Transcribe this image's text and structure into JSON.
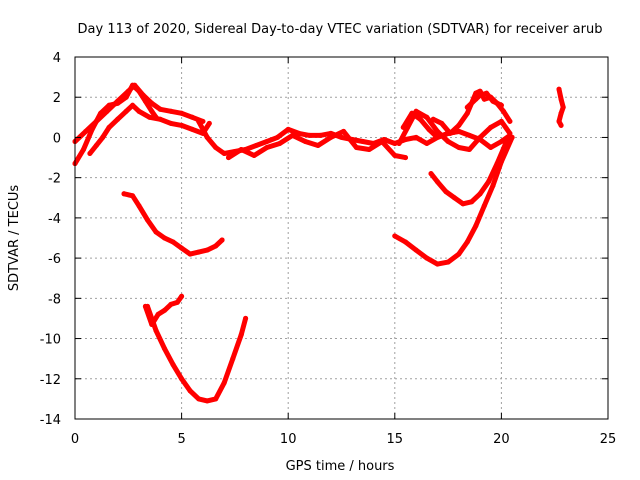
{
  "chart_data": {
    "type": "line",
    "title": "Day 113 of 2020, Sidereal Day-to-day VTEC variation (SDTVAR) for receiver arub",
    "xlabel": "GPS time / hours",
    "ylabel": "SDTVAR / TECUs",
    "xlim": [
      0,
      25
    ],
    "ylim": [
      -14,
      4
    ],
    "xticks": [
      "0",
      "5",
      "10",
      "15",
      "20",
      "25"
    ],
    "yticks": [
      "4",
      "2",
      "0",
      "-2",
      "-4",
      "-6",
      "-8",
      "-10",
      "-12",
      "-14"
    ],
    "grid": true,
    "legend": "none",
    "color": "#ff0000",
    "series": [
      {
        "x": [
          0,
          0.5,
          1.0,
          1.5,
          2.0,
          2.5,
          2.8,
          3.2,
          3.6,
          4.0,
          4.5,
          5.0,
          5.5,
          6.0
        ],
        "y": [
          -0.2,
          0.3,
          0.8,
          1.3,
          1.8,
          2.3,
          2.6,
          2.1,
          1.7,
          1.4,
          1.3,
          1.2,
          1.0,
          0.8
        ]
      },
      {
        "x": [
          0,
          0.4,
          0.8,
          1.2,
          1.6,
          2.0,
          2.4,
          2.7,
          3.0,
          3.3,
          3.6,
          3.8
        ],
        "y": [
          -1.3,
          -0.6,
          0.4,
          1.2,
          1.6,
          1.7,
          2.0,
          2.6,
          2.3,
          1.8,
          1.3,
          1.0
        ]
      },
      {
        "x": [
          0.7,
          1.0,
          1.3,
          1.6,
          2.0,
          2.4,
          2.7,
          3.0,
          3.5,
          4.0,
          4.5,
          5.0,
          5.5,
          6.0,
          6.3
        ],
        "y": [
          -0.8,
          -0.4,
          0.0,
          0.5,
          0.9,
          1.3,
          1.6,
          1.3,
          1.0,
          0.9,
          0.7,
          0.6,
          0.4,
          0.2,
          0.7
        ]
      },
      {
        "x": [
          5.8,
          6.2,
          6.6,
          7.0,
          7.5,
          8.0,
          8.5,
          9.0,
          9.5,
          10.0,
          10.5,
          11.0,
          11.5,
          12.0,
          12.5,
          13.0,
          13.5,
          14.0,
          14.5,
          15.0,
          15.5,
          16.0,
          16.5,
          17.0,
          17.5,
          18.0
        ],
        "y": [
          0.8,
          0.0,
          -0.5,
          -0.8,
          -0.7,
          -0.6,
          -0.4,
          -0.2,
          0.0,
          0.4,
          0.2,
          0.1,
          0.1,
          0.2,
          0.0,
          -0.1,
          -0.2,
          -0.3,
          -0.1,
          -0.3,
          -0.1,
          0.0,
          -0.3,
          0.0,
          0.2,
          0.3
        ]
      },
      {
        "x": [
          7.2,
          7.8,
          8.4,
          9.0,
          9.6,
          10.2,
          10.8,
          11.4,
          12.0,
          12.6,
          13.2,
          13.8,
          14.4,
          15.0,
          15.5
        ],
        "y": [
          -1.0,
          -0.6,
          -0.9,
          -0.5,
          -0.3,
          0.1,
          -0.2,
          -0.4,
          0.0,
          0.3,
          -0.5,
          -0.6,
          -0.2,
          -0.9,
          -1.0
        ]
      },
      {
        "x": [
          15.2,
          15.6,
          16.0,
          16.5,
          17.0,
          17.5,
          18.0,
          18.5,
          19.0,
          19.5,
          20.0,
          20.4
        ],
        "y": [
          -0.3,
          0.5,
          1.3,
          1.0,
          0.3,
          -0.2,
          -0.5,
          -0.6,
          0.0,
          0.5,
          0.8,
          0.2
        ]
      },
      {
        "x": [
          15.4,
          15.8,
          16.2,
          16.6,
          17.0,
          17.5,
          18.0,
          18.5,
          19.0,
          19.5,
          20.0,
          20.4
        ],
        "y": [
          0.5,
          1.2,
          0.9,
          0.4,
          0.0,
          0.2,
          0.3,
          0.1,
          -0.1,
          -0.5,
          -0.2,
          0.1
        ]
      },
      {
        "x": [
          16.8,
          17.2,
          17.6,
          18.0,
          18.4,
          18.8,
          19.0,
          19.2,
          19.5,
          19.8,
          20.1,
          20.4
        ],
        "y": [
          0.9,
          0.7,
          0.2,
          0.6,
          1.2,
          2.2,
          2.3,
          1.9,
          2.0,
          1.7,
          1.3,
          0.8
        ]
      },
      {
        "x": [
          18.4,
          18.8,
          19.0,
          19.3,
          19.6,
          20.0
        ],
        "y": [
          1.5,
          1.9,
          2.1,
          2.2,
          1.8,
          1.6
        ]
      },
      {
        "x": [
          16.7,
          17.0,
          17.4,
          17.8,
          18.2,
          18.6,
          19.0,
          19.4,
          19.8,
          20.2,
          20.5
        ],
        "y": [
          -1.8,
          -2.2,
          -2.7,
          -3.0,
          -3.3,
          -3.2,
          -2.8,
          -2.2,
          -1.3,
          -0.3,
          0.0
        ]
      },
      {
        "x": [
          15.0,
          15.5,
          16.0,
          16.5,
          17.0,
          17.5,
          18.0,
          18.4,
          18.8,
          19.2,
          19.6,
          20.0,
          20.5
        ],
        "y": [
          -4.9,
          -5.2,
          -5.6,
          -6.0,
          -6.3,
          -6.2,
          -5.8,
          -5.2,
          -4.4,
          -3.4,
          -2.4,
          -1.2,
          0.0
        ]
      },
      {
        "x": [
          2.3,
          2.7,
          3.0,
          3.4,
          3.8,
          4.2,
          4.6,
          5.0,
          5.4,
          5.8,
          6.2,
          6.6,
          6.9
        ],
        "y": [
          -2.8,
          -2.9,
          -3.4,
          -4.1,
          -4.7,
          -5.0,
          -5.2,
          -5.5,
          -5.8,
          -5.7,
          -5.6,
          -5.4,
          -5.1
        ]
      },
      {
        "x": [
          3.3,
          3.6,
          3.9,
          4.2,
          4.5,
          4.8,
          5.0
        ],
        "y": [
          -8.4,
          -9.3,
          -8.8,
          -8.6,
          -8.3,
          -8.2,
          -7.9
        ]
      },
      {
        "x": [
          3.4,
          3.8,
          4.2,
          4.6,
          5.0,
          5.4,
          5.8,
          6.2,
          6.6,
          7.0,
          7.4,
          7.8,
          8.0
        ],
        "y": [
          -8.4,
          -9.6,
          -10.5,
          -11.3,
          -12.0,
          -12.6,
          -13.0,
          -13.1,
          -13.0,
          -12.2,
          -11.0,
          -9.8,
          -9.0
        ]
      },
      {
        "x": [
          22.7,
          22.8,
          22.9,
          22.8,
          22.7,
          22.8
        ],
        "y": [
          2.4,
          1.9,
          1.5,
          1.2,
          0.8,
          0.6
        ]
      }
    ]
  }
}
